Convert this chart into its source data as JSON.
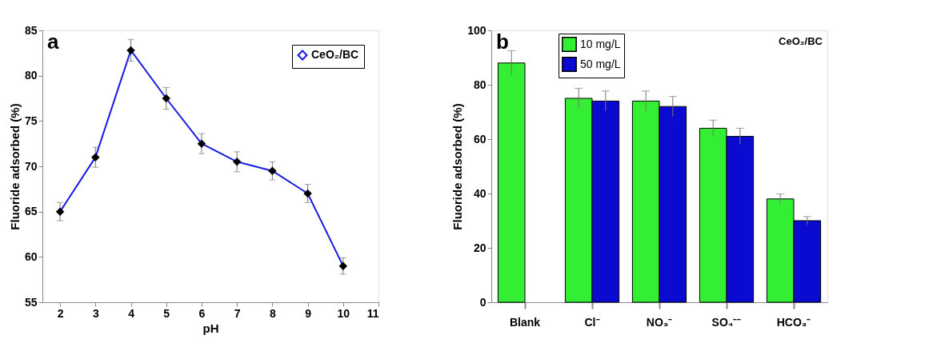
{
  "chart_data": [
    {
      "type": "line",
      "title": "a",
      "xlabel": "pH",
      "ylabel": "Fluoride adsorbed (%)",
      "x": [
        2,
        3,
        4,
        5,
        6,
        7,
        8,
        9,
        10
      ],
      "series": [
        {
          "name": "CeO₂/BC",
          "color": "#1a1ae6",
          "values": [
            65,
            71,
            82.8,
            77.5,
            72.5,
            70.5,
            69.5,
            67,
            59
          ],
          "errors": [
            1,
            1.1,
            1.2,
            1.2,
            1.1,
            1.1,
            1,
            1,
            0.9
          ]
        }
      ],
      "xlim": [
        1.5,
        11
      ],
      "xticks": [
        2,
        3,
        4,
        5,
        6,
        7,
        8,
        9,
        10,
        11
      ],
      "ylim": [
        55,
        85
      ],
      "yticks": [
        55,
        60,
        65,
        70,
        75,
        80,
        85
      ],
      "marker": "diamond",
      "line_style": "solid",
      "grid": false,
      "legend": "top right"
    },
    {
      "type": "bar",
      "title": "b",
      "ylabel": "Fluoride adsorbed (%)",
      "categories": [
        "Blank",
        "Cl⁻",
        "NO₃⁻",
        "SO₄⁻⁻",
        "HCO₃⁻"
      ],
      "series": [
        {
          "name": "10 mg/L",
          "color": "#33ee33",
          "values": [
            88,
            75,
            74,
            64,
            38
          ],
          "errors": [
            4.5,
            3.7,
            3.7,
            3,
            1.8
          ]
        },
        {
          "name": "50 mg/L",
          "color": "#0a0ad0",
          "values": [
            null,
            74,
            72,
            61,
            30
          ],
          "errors": [
            null,
            3.7,
            3.7,
            3,
            1.5
          ]
        }
      ],
      "ylim": [
        0,
        100
      ],
      "yticks": [
        0,
        20,
        40,
        60,
        80,
        100
      ],
      "annotations": [
        "CeO₂/BC"
      ],
      "grid": false,
      "legend": "top left"
    }
  ]
}
